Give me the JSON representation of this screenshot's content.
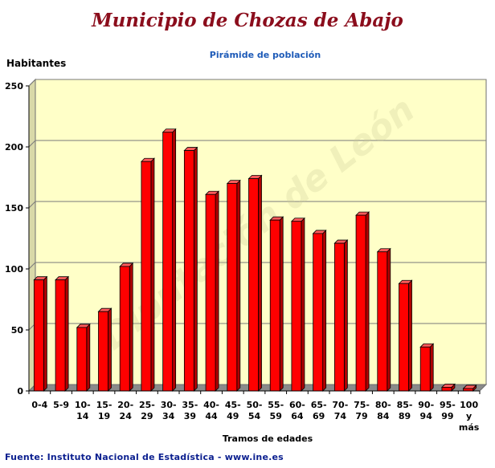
{
  "header": {
    "title": "Municipio de Chozas de Abajo",
    "subtitle": "Pirámide de población"
  },
  "footer": {
    "source": "Fuente: Instituto Nacional de Estadística - www.ine.es"
  },
  "watermark": "Diputación de León",
  "colors": {
    "bar": "#ff0000",
    "bar_dark": "#b00000",
    "bar_top": "#ff5a5a",
    "plot_bg": "#ffffc8",
    "floor": "#8a8a8a",
    "title": "#8b0d1c",
    "subtitle": "#1e5bb8",
    "source": "#0b1f8f"
  },
  "chart_data": {
    "type": "bar",
    "title": "Pirámide de población",
    "ylabel": "Habitantes",
    "xlabel": "Tramos de edades",
    "ylim": [
      0,
      250
    ],
    "yticks": [
      0,
      50,
      100,
      150,
      200,
      250
    ],
    "grid": true,
    "categories": [
      [
        "0-4"
      ],
      [
        "5-9"
      ],
      [
        "10-",
        "14"
      ],
      [
        "15-",
        "19"
      ],
      [
        "20-",
        "24"
      ],
      [
        "25-",
        "29"
      ],
      [
        "30-",
        "34"
      ],
      [
        "35-",
        "39"
      ],
      [
        "40-",
        "44"
      ],
      [
        "45-",
        "49"
      ],
      [
        "50-",
        "54"
      ],
      [
        "55-",
        "59"
      ],
      [
        "60-",
        "64"
      ],
      [
        "65-",
        "69"
      ],
      [
        "70-",
        "74"
      ],
      [
        "75-",
        "79"
      ],
      [
        "80-",
        "84"
      ],
      [
        "85-",
        "89"
      ],
      [
        "90-",
        "94"
      ],
      [
        "95-",
        "99"
      ],
      [
        "100",
        "y",
        "más"
      ]
    ],
    "values": [
      91,
      91,
      52,
      65,
      102,
      188,
      212,
      197,
      161,
      170,
      174,
      140,
      139,
      129,
      121,
      144,
      114,
      88,
      36,
      3,
      2
    ]
  }
}
